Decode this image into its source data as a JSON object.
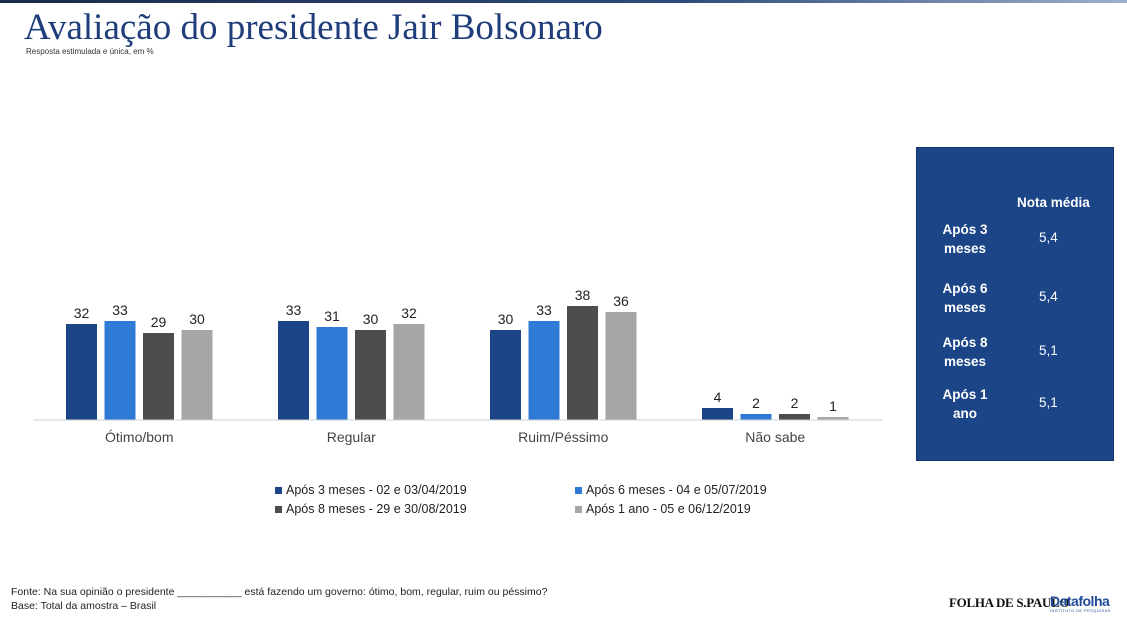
{
  "title": "Avaliação do presidente Jair Bolsonaro",
  "subtitle": "Resposta estimulada e única, em %",
  "chart_data": {
    "type": "bar",
    "categories": [
      "Ótimo/bom",
      "Regular",
      "Ruim/Péssimo",
      "Não sabe"
    ],
    "series": [
      {
        "name": "Após 3 meses - 02 e 03/04/2019",
        "color": "#1c4587",
        "values": [
          32,
          33,
          30,
          4
        ]
      },
      {
        "name": "Após 6 meses - 04 e 05/07/2019",
        "color": "#2f7ad6",
        "values": [
          33,
          31,
          33,
          2
        ]
      },
      {
        "name": "Após 8 meses - 29 e 30/08/2019",
        "color": "#4d4d4d",
        "values": [
          29,
          30,
          38,
          2
        ]
      },
      {
        "name": "Após 1 ano - 05 e 06/12/2019",
        "color": "#a6a6a6",
        "values": [
          30,
          32,
          36,
          1
        ]
      }
    ],
    "ylim": [
      0,
      60
    ],
    "grid": false,
    "legend": "bottom"
  },
  "score_panel": {
    "header": "Nota média",
    "rows": [
      {
        "label": "Após 3 meses",
        "value": "5,4"
      },
      {
        "label": "Após 6 meses",
        "value": "5,4"
      },
      {
        "label": "Após 8 meses",
        "value": "5,1"
      },
      {
        "label": "Após 1 ano",
        "value": "5,1"
      }
    ]
  },
  "footnote": {
    "source": "Fonte: Na sua opinião o presidente ___________ está fazendo um governo: ótimo, bom, regular, ruim ou péssimo?",
    "base": "Base: Total da amostra – Brasil"
  },
  "logos": {
    "folha": "FOLHA DE S.PAULO",
    "datafolha": "Datafolha",
    "datafolha_tagline": "INSTITUTO DE PESQUISAS"
  }
}
